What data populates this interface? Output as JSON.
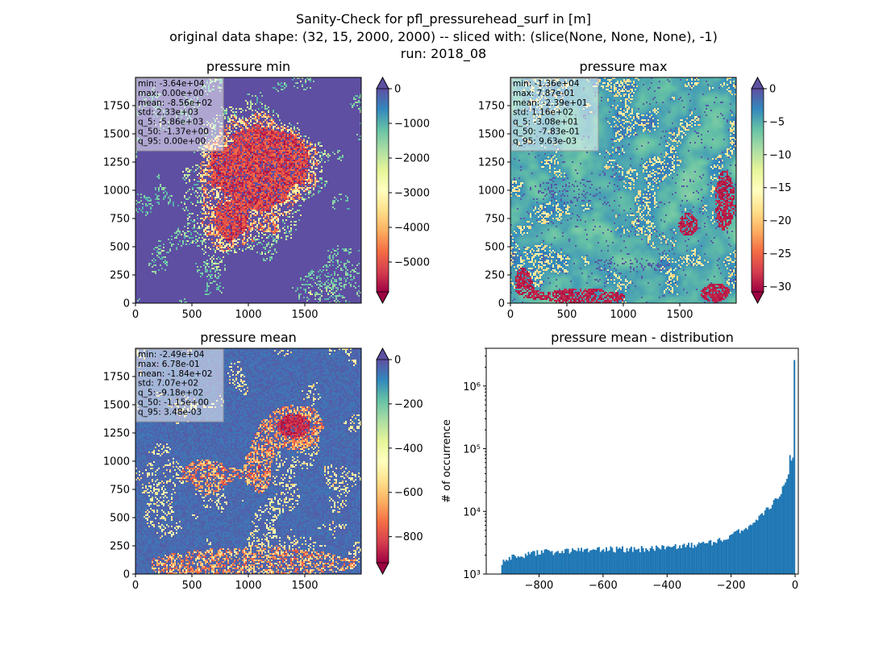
{
  "figure": {
    "title_lines": [
      "Sanity-Check for pfl_pressurehead_surf in [m]",
      "original data shape: (32, 15, 2000, 2000) -- sliced with: (slice(None, None, None), -1)",
      "run: 2018_08"
    ]
  },
  "chart_data": [
    {
      "type": "heatmap",
      "title": "pressure min",
      "xlim": [
        0,
        2000
      ],
      "ylim": [
        0,
        2000
      ],
      "x_ticks": [
        "0",
        "500",
        "1000",
        "1500"
      ],
      "y_ticks": [
        "0",
        "250",
        "500",
        "750",
        "1000",
        "1250",
        "1500",
        "1750"
      ],
      "colormap": "Spectral",
      "colorbar": {
        "min": -5860,
        "max": 0,
        "ticks": [
          "0",
          "−1000",
          "−2000",
          "−3000",
          "−4000",
          "−5000"
        ],
        "extend": "both"
      },
      "stats": [
        "min: -3.64e+04",
        "max: 0.00e+00",
        "mean: -8.56e+02",
        "std: 2.33e+03",
        "q_5: -5.86e+03",
        "q_50: -1.37e+00",
        "q_95: 0.00e+00"
      ]
    },
    {
      "type": "heatmap",
      "title": "pressure max",
      "xlim": [
        0,
        2000
      ],
      "ylim": [
        0,
        2000
      ],
      "x_ticks": [
        "0",
        "500",
        "1000",
        "1500"
      ],
      "y_ticks": [
        "0",
        "250",
        "500",
        "750",
        "1000",
        "1250",
        "1500",
        "1750"
      ],
      "colormap": "Spectral",
      "colorbar": {
        "min": -30.8,
        "max": 0,
        "ticks": [
          "0",
          "−5",
          "−10",
          "−15",
          "−20",
          "−25",
          "−30"
        ],
        "extend": "both"
      },
      "stats": [
        "min: -1.36e+04",
        "max: 7.87e-01",
        "mean: -2.39e+01",
        "std: 1.16e+02",
        "q_5: -3.08e+01",
        "q_50: -7.83e-01",
        "q_95: 9.63e-03"
      ]
    },
    {
      "type": "heatmap",
      "title": "pressure mean",
      "xlim": [
        0,
        2000
      ],
      "ylim": [
        0,
        2000
      ],
      "x_ticks": [
        "0",
        "500",
        "1000",
        "1500"
      ],
      "y_ticks": [
        "0",
        "250",
        "500",
        "750",
        "1000",
        "1250",
        "1500",
        "1750"
      ],
      "colormap": "Spectral",
      "colorbar": {
        "min": -918,
        "max": 0,
        "ticks": [
          "0",
          "−200",
          "−400",
          "−600",
          "−800"
        ],
        "extend": "both"
      },
      "stats": [
        "min: -2.49e+04",
        "max: 6.78e-01",
        "mean: -1.84e+02",
        "std: 7.07e+02",
        "q_5: -9.18e+02",
        "q_50: -1.15e+00",
        "q_95: 3.48e-03"
      ]
    },
    {
      "type": "bar",
      "title": "pressure mean - distribution",
      "ylabel": "# of occurrence",
      "x_ticks": [
        "−800",
        "−600",
        "−400",
        "−200",
        "0"
      ],
      "y_ticks": [
        "10³",
        "10⁴",
        "10⁵",
        "10⁶"
      ],
      "xlim": [
        -965,
        10
      ],
      "ylim": [
        1000,
        4000000
      ],
      "yscale": "log",
      "color": "#1f77b4",
      "bin_range": [
        -918,
        0
      ],
      "control_points": [
        [
          -918,
          1500
        ],
        [
          -880,
          1900
        ],
        [
          -800,
          2200
        ],
        [
          -700,
          2400
        ],
        [
          -600,
          2500
        ],
        [
          -500,
          2500
        ],
        [
          -400,
          2650
        ],
        [
          -300,
          2900
        ],
        [
          -250,
          3200
        ],
        [
          -200,
          4000
        ],
        [
          -150,
          5500
        ],
        [
          -100,
          9000
        ],
        [
          -60,
          15000
        ],
        [
          -40,
          22000
        ],
        [
          -30,
          28000
        ],
        [
          -20,
          40000
        ],
        [
          -15,
          95000
        ],
        [
          -10,
          55000
        ],
        [
          -5,
          85000
        ],
        [
          0,
          2600000
        ]
      ]
    }
  ]
}
